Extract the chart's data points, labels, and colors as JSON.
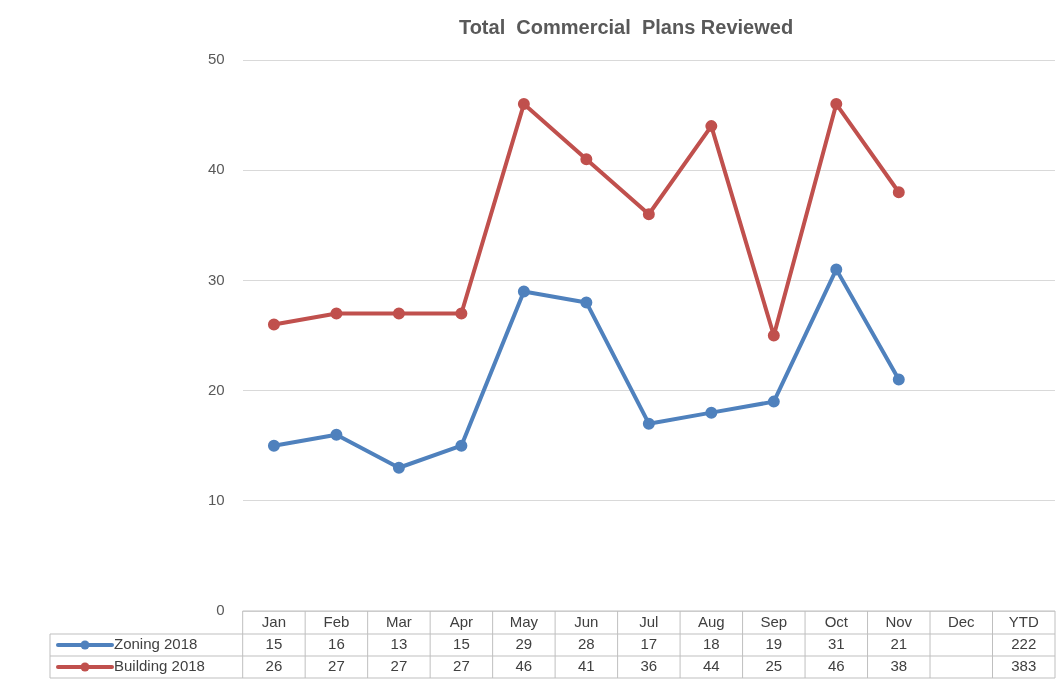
{
  "chart_data": {
    "type": "line",
    "title": "Total  Commercial  Plans Reviewed",
    "categories": [
      "Jan",
      "Feb",
      "Mar",
      "Apr",
      "May",
      "Jun",
      "Jul",
      "Aug",
      "Sep",
      "Oct",
      "Nov",
      "Dec",
      "YTD"
    ],
    "series": [
      {
        "name": "Zoning 2018",
        "color": "#4f81bd",
        "values": [
          15,
          16,
          13,
          15,
          29,
          28,
          17,
          18,
          19,
          31,
          21,
          null,
          null
        ],
        "value_labels": [
          "15",
          "16",
          "13",
          "15",
          "29",
          "28",
          "17",
          "18",
          "19",
          "31",
          "21",
          null,
          "222"
        ]
      },
      {
        "name": "Building 2018",
        "color": "#c0504d",
        "values": [
          26,
          27,
          27,
          27,
          46,
          41,
          36,
          44,
          25,
          46,
          38,
          null,
          null
        ],
        "value_labels": [
          "26",
          "27",
          "27",
          "27",
          "46",
          "41",
          "36",
          "44",
          "25",
          "46",
          "38",
          null,
          "383"
        ]
      }
    ],
    "ylim": [
      0,
      50
    ],
    "yticks": [
      0,
      10,
      20,
      30,
      40,
      50
    ],
    "grid": "y",
    "legend": "bottom left",
    "marker": "circle",
    "line_style": "solid"
  }
}
